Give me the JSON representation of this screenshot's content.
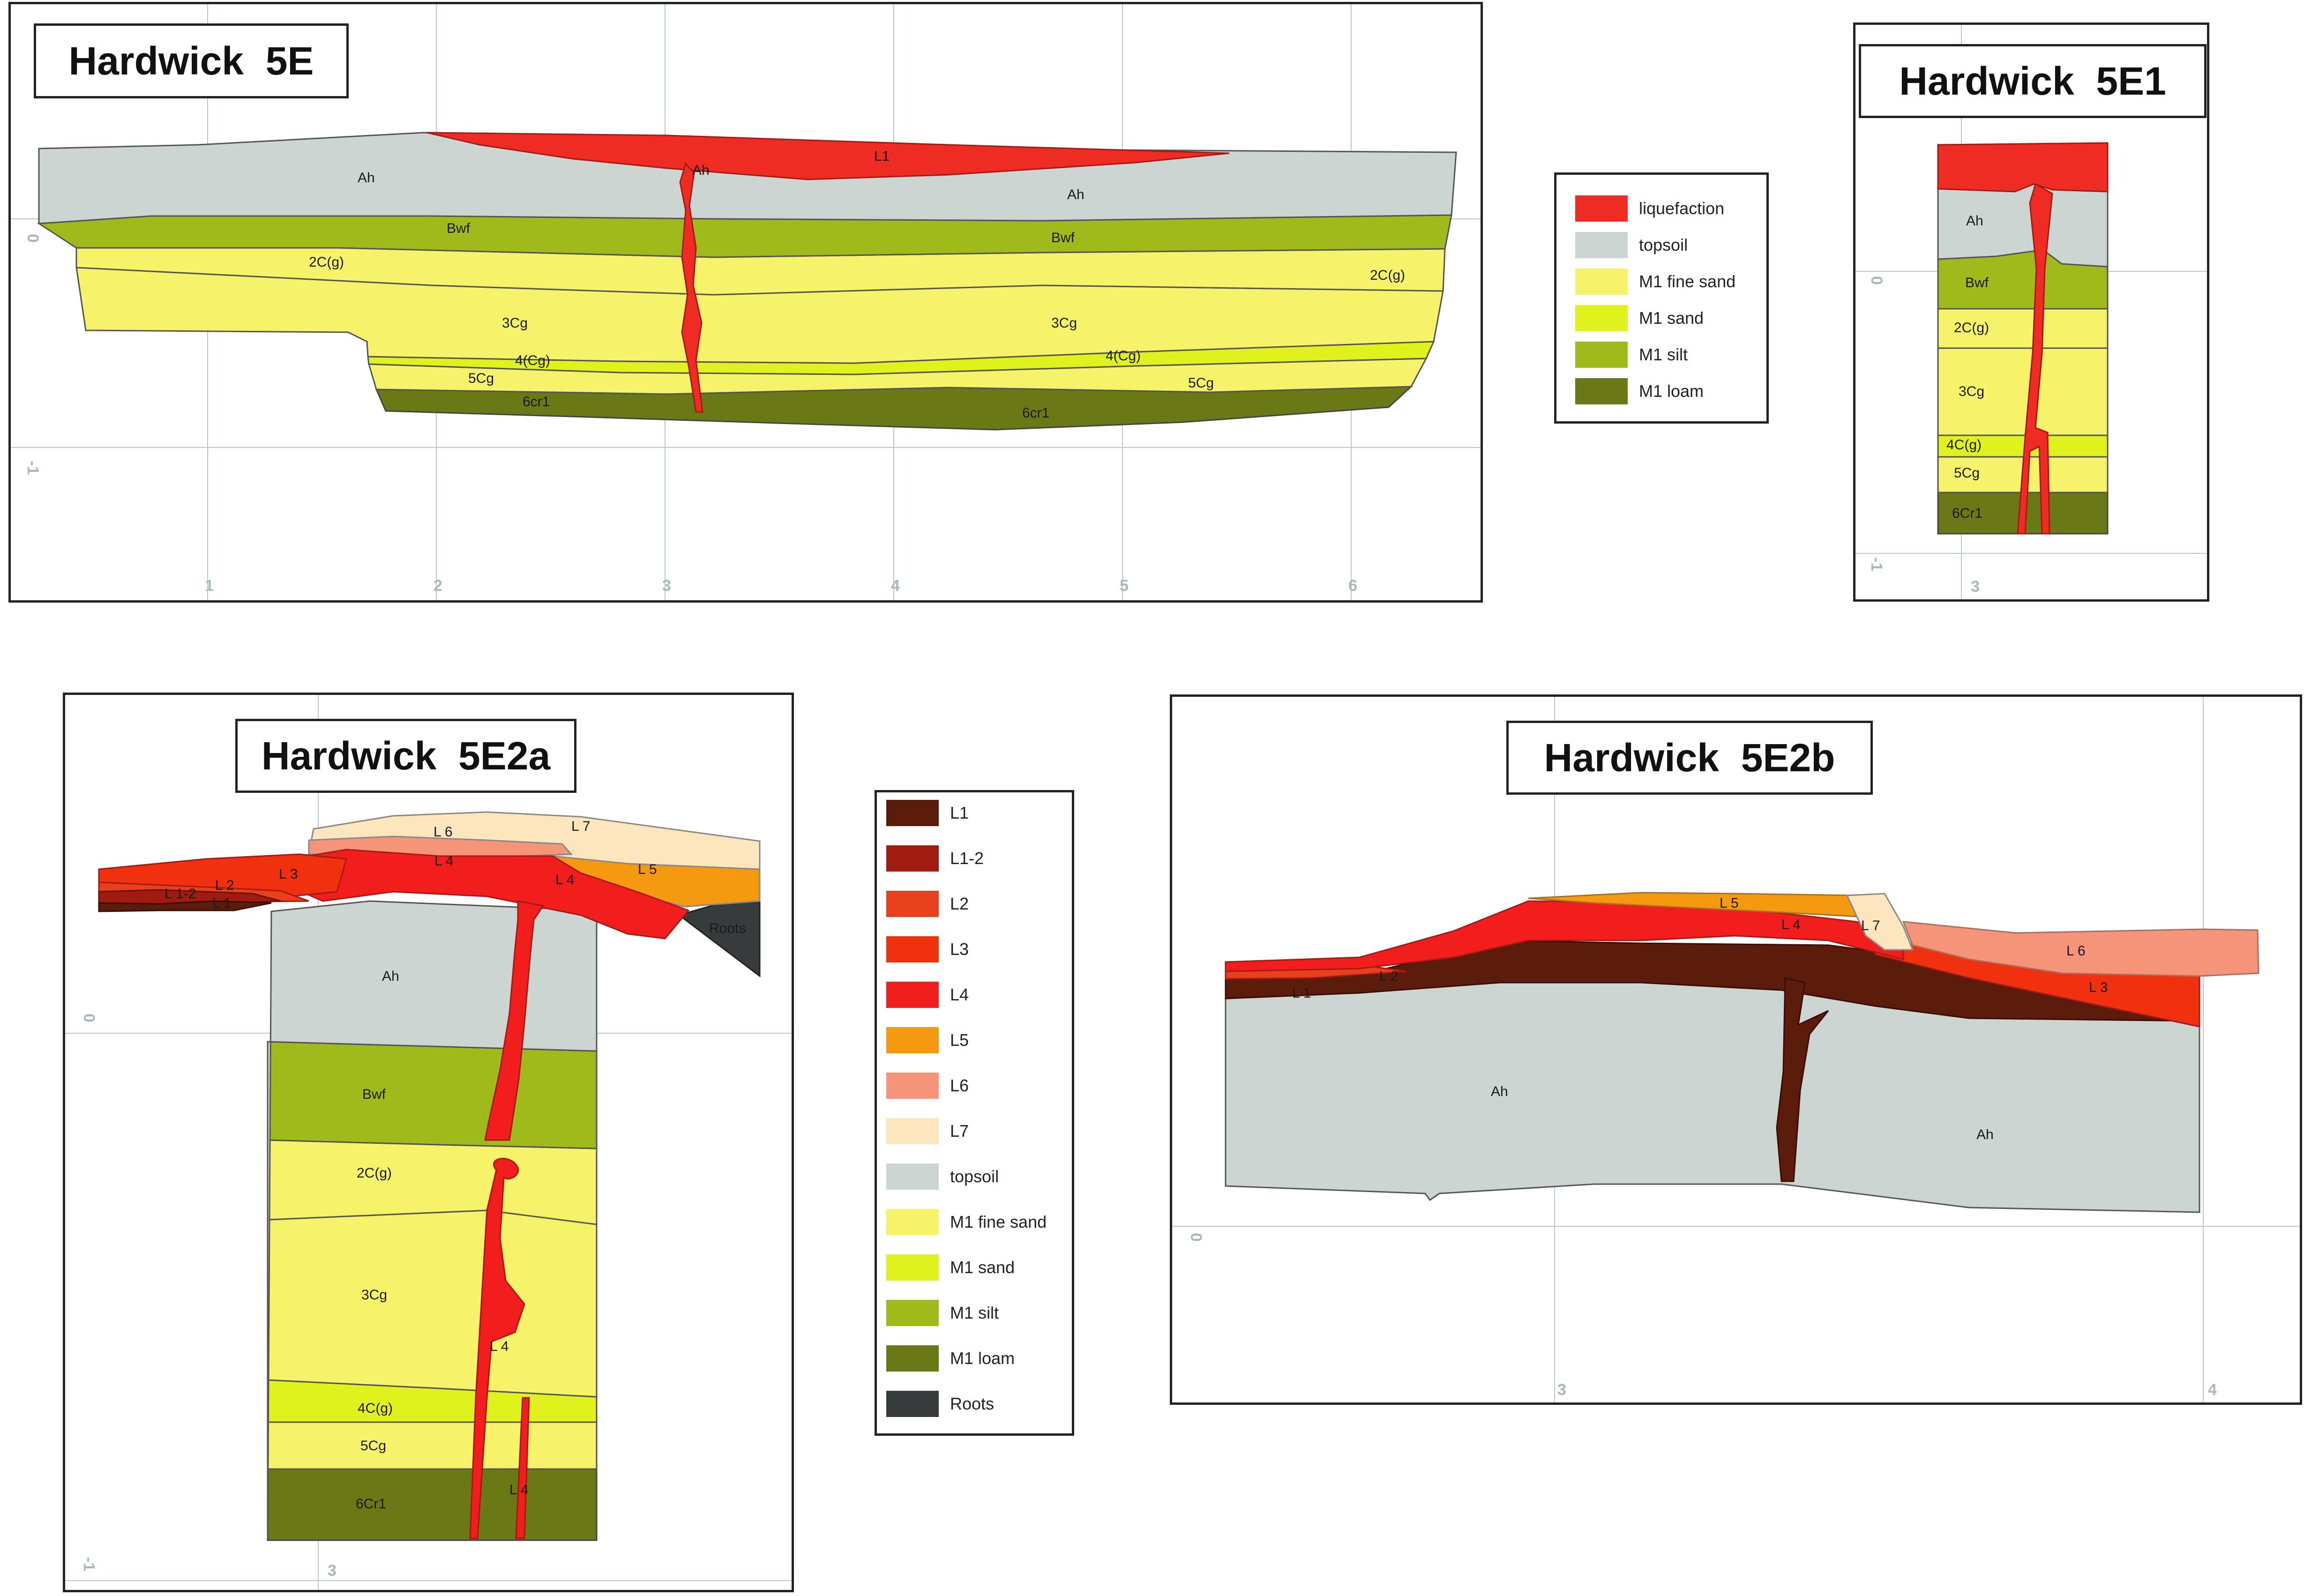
{
  "panels": {
    "p5e": {
      "title": "Hardwick  5E"
    },
    "p5e1": {
      "title": "Hardwick  5E1"
    },
    "p5e2a": {
      "title": "Hardwick  5E2a"
    },
    "p5e2b": {
      "title": "Hardwick  5E2b"
    }
  },
  "legend1": {
    "items": [
      {
        "label": "liquefaction",
        "color": "#ee2c24"
      },
      {
        "label": "topsoil",
        "color": "#cdd5d3"
      },
      {
        "label": "M1 fine sand",
        "color": "#f6f26a"
      },
      {
        "label": "M1 sand",
        "color": "#e0f21e"
      },
      {
        "label": "M1 silt",
        "color": "#9fba1a"
      },
      {
        "label": "M1 loam",
        "color": "#6b7816"
      }
    ]
  },
  "legend2": {
    "items": [
      {
        "label": "L1",
        "color": "#5c1c0c"
      },
      {
        "label": "L1-2",
        "color": "#a01c10"
      },
      {
        "label": "L2",
        "color": "#e8401c"
      },
      {
        "label": "L3",
        "color": "#f0300e"
      },
      {
        "label": "L4",
        "color": "#f21e1e"
      },
      {
        "label": "L5",
        "color": "#f59a10"
      },
      {
        "label": "L6",
        "color": "#f6947a"
      },
      {
        "label": "L7",
        "color": "#fde5bd"
      },
      {
        "label": "topsoil",
        "color": "#cdd5d3"
      },
      {
        "label": "M1 fine sand",
        "color": "#f6f26a"
      },
      {
        "label": "M1 sand",
        "color": "#e0f21e"
      },
      {
        "label": "M1 silt",
        "color": "#9fba1a"
      },
      {
        "label": "M1 loam",
        "color": "#6b7816"
      },
      {
        "label": "Roots",
        "color": "#373b3c"
      }
    ]
  },
  "labels_5e": {
    "ah_left": "Ah",
    "ah_mid": "Ah",
    "ah_right": "Ah",
    "l1": "L1",
    "bwf_left": "Bwf",
    "bwf_right": "Bwf",
    "c2g_left": "2C(g)",
    "c2g_right": "2C(g)",
    "c3cg_left": "3Cg",
    "c3cg_right": "3Cg",
    "c4cg_left": "4(Cg)",
    "c4cg_right": "4(Cg)",
    "c5cg_left": "5Cg",
    "c5cg_right": "5Cg",
    "c6_left": "6cr1",
    "c6_right": "6cr1",
    "axis_x": [
      "1",
      "2",
      "3",
      "4",
      "5",
      "6"
    ],
    "axis_y0": "0",
    "axis_y1": "-1"
  },
  "labels_5e1": {
    "ah": "Ah",
    "bwf": "Bwf",
    "c2g": "2C(g)",
    "c3cg": "3Cg",
    "c4cg": "4C(g)",
    "c5cg": "5Cg",
    "c6": "6Cr1",
    "axis_x": "3",
    "axis_y0": "0",
    "axis_y1": "-1"
  },
  "labels_5e2a": {
    "l7": "L 7",
    "l6": "L 6",
    "l4a": "L 4",
    "l4b": "L 4",
    "l5": "L 5",
    "l3": "L 3",
    "l2": "L 2",
    "l12": "L 1-2",
    "l1": "L 1",
    "roots": "Roots",
    "ah": "Ah",
    "bwf": "Bwf",
    "c2g": "2C(g)",
    "c3cg": "3Cg",
    "l4c": "L 4",
    "c4cg": "4C(g)",
    "c5cg": "5Cg",
    "c6": "6Cr1",
    "l4d": "L 4",
    "axis_x": "3",
    "axis_y0": "0",
    "axis_y1": "-1"
  },
  "labels_5e2b": {
    "l5": "L 5",
    "l4": "L 4",
    "l7": "L 7",
    "l6": "L 6",
    "l3": "L 3",
    "l2": "L 2",
    "l1": "L 1",
    "ah_left": "Ah",
    "ah_right": "Ah",
    "axis_x3": "3",
    "axis_x4": "4",
    "axis_y0": "0"
  }
}
